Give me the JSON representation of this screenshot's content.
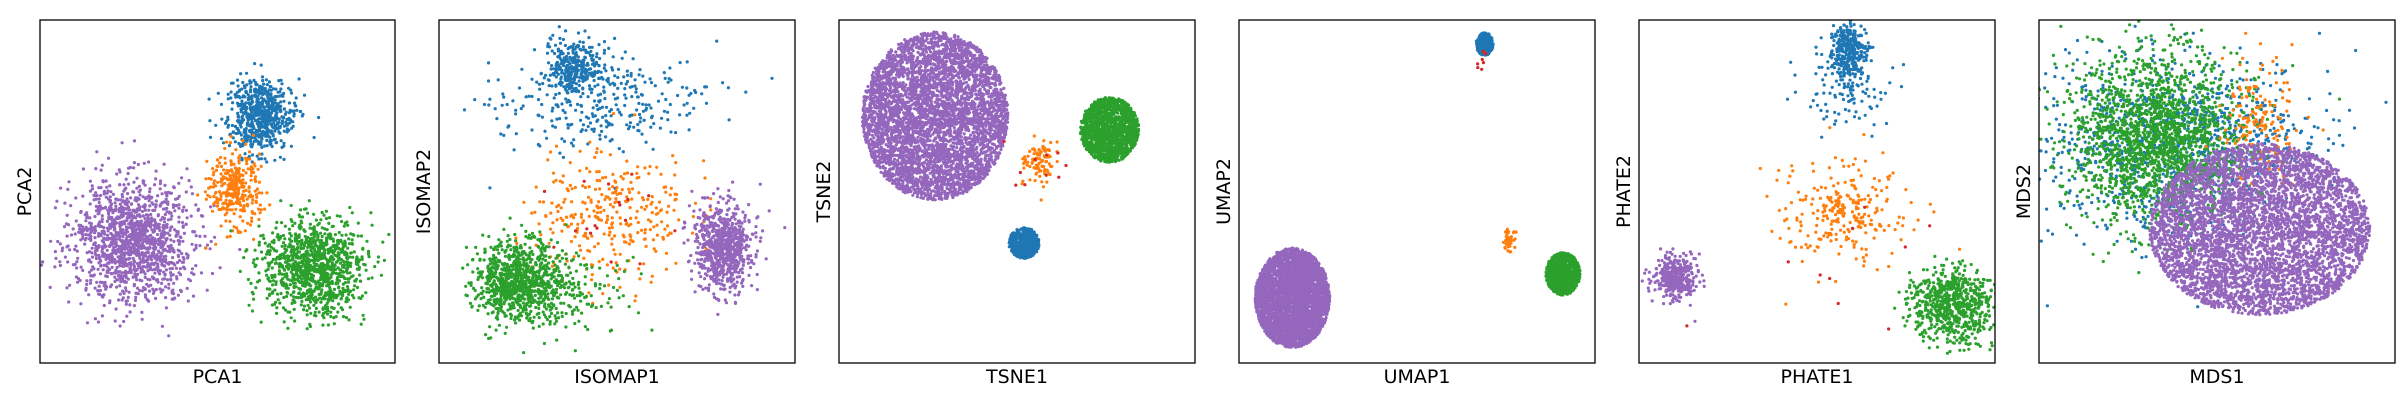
{
  "chart_data": [
    {
      "type": "scatter",
      "xlabel": "PCA1",
      "ylabel": "PCA2",
      "xlim": [
        0,
        100
      ],
      "ylim": [
        0,
        100
      ],
      "grid": false,
      "clusters": [
        {
          "color": "#9467bd",
          "center": [
            26,
            64
          ],
          "spread": [
            8.5,
            8.5
          ],
          "n": 1400,
          "shape": "gauss"
        },
        {
          "color": "#1f77b4",
          "center": [
            62,
            28
          ],
          "spread": [
            4.6,
            5.2
          ],
          "n": 650,
          "shape": "gauss"
        },
        {
          "color": "#ff7f0e",
          "center": [
            55,
            49
          ],
          "spread": [
            3.5,
            5.5
          ],
          "n": 320,
          "shape": "gauss"
        },
        {
          "color": "#2ca02c",
          "center": [
            77,
            72
          ],
          "spread": [
            7,
            7
          ],
          "n": 1100,
          "shape": "gauss"
        }
      ]
    },
    {
      "type": "scatter",
      "xlabel": "ISOMAP1",
      "ylabel": "ISOMAP2",
      "xlim": [
        0,
        100
      ],
      "ylim": [
        0,
        100
      ],
      "grid": false,
      "clusters": [
        {
          "color": "#1f77b4",
          "center": [
            38,
            14
          ],
          "spread": [
            4,
            4
          ],
          "n": 300,
          "shape": "gauss"
        },
        {
          "color": "#1f77b4",
          "center": [
            44,
            24
          ],
          "spread": [
            15,
            7
          ],
          "n": 300,
          "shape": "gauss"
        },
        {
          "color": "#ff7f0e",
          "center": [
            48,
            58
          ],
          "spread": [
            11,
            10
          ],
          "n": 320,
          "shape": "gauss"
        },
        {
          "color": "#9467bd",
          "center": [
            80,
            66
          ],
          "spread": [
            4,
            6
          ],
          "n": 800,
          "shape": "gauss"
        },
        {
          "color": "#2ca02c",
          "center": [
            22,
            76
          ],
          "spread": [
            6,
            5.5
          ],
          "n": 900,
          "shape": "gauss"
        },
        {
          "color": "#2ca02c",
          "center": [
            35,
            80
          ],
          "spread": [
            10,
            6
          ],
          "n": 180,
          "shape": "gauss"
        },
        {
          "color": "#d62728",
          "center": [
            48,
            55
          ],
          "spread": [
            12,
            12
          ],
          "n": 18,
          "shape": "gauss"
        }
      ]
    },
    {
      "type": "scatter",
      "xlabel": "TSNE1",
      "ylabel": "TSNE2",
      "xlim": [
        0,
        100
      ],
      "ylim": [
        0,
        100
      ],
      "grid": false,
      "clusters": [
        {
          "color": "#9467bd",
          "center": [
            27,
            28
          ],
          "spread": [
            20.5,
            24.5
          ],
          "n": 4500,
          "shape": "disk"
        },
        {
          "color": "#2ca02c",
          "center": [
            76,
            32
          ],
          "spread": [
            8.2,
            9.5
          ],
          "n": 1400,
          "shape": "disk"
        },
        {
          "color": "#ff7f0e",
          "center": [
            56,
            41
          ],
          "spread": [
            2.2,
            3.2
          ],
          "n": 90,
          "shape": "gauss"
        },
        {
          "color": "#1f77b4",
          "center": [
            52,
            65
          ],
          "spread": [
            4.3,
            4.5
          ],
          "n": 500,
          "shape": "disk"
        },
        {
          "color": "#d62728",
          "center": [
            55,
            44
          ],
          "spread": [
            6,
            8
          ],
          "n": 10,
          "shape": "gauss"
        }
      ]
    },
    {
      "type": "scatter",
      "xlabel": "UMAP1",
      "ylabel": "UMAP2",
      "xlim": [
        0,
        100
      ],
      "ylim": [
        0,
        100
      ],
      "grid": false,
      "clusters": [
        {
          "color": "#9467bd",
          "center": [
            15,
            81
          ],
          "spread": [
            10.5,
            14.5
          ],
          "n": 3500,
          "shape": "disk"
        },
        {
          "color": "#1f77b4",
          "center": [
            69,
            7
          ],
          "spread": [
            2.4,
            3.3
          ],
          "n": 300,
          "shape": "disk"
        },
        {
          "color": "#2ca02c",
          "center": [
            91,
            74
          ],
          "spread": [
            4.8,
            6.2
          ],
          "n": 900,
          "shape": "disk"
        },
        {
          "color": "#ff7f0e",
          "center": [
            76,
            64
          ],
          "spread": [
            1,
            1.5
          ],
          "n": 45,
          "shape": "gauss"
        },
        {
          "color": "#d62728",
          "center": [
            68,
            11
          ],
          "spread": [
            0.6,
            2
          ],
          "n": 8,
          "shape": "gauss"
        }
      ]
    },
    {
      "type": "scatter",
      "xlabel": "PHATE1",
      "ylabel": "PHATE2",
      "xlim": [
        0,
        100
      ],
      "ylim": [
        0,
        100
      ],
      "grid": false,
      "clusters": [
        {
          "color": "#1f77b4",
          "center": [
            59,
            9
          ],
          "spread": [
            2.5,
            4
          ],
          "n": 300,
          "shape": "gauss"
        },
        {
          "color": "#1f77b4",
          "center": [
            58,
            20
          ],
          "spread": [
            6,
            6
          ],
          "n": 120,
          "shape": "gauss"
        },
        {
          "color": "#ff7f0e",
          "center": [
            57,
            56
          ],
          "spread": [
            10,
            9
          ],
          "n": 200,
          "shape": "gauss"
        },
        {
          "color": "#ff7f0e",
          "center": [
            57,
            56
          ],
          "spread": [
            2.5,
            2.5
          ],
          "n": 60,
          "shape": "gauss"
        },
        {
          "color": "#9467bd",
          "center": [
            10,
            75
          ],
          "spread": [
            3,
            3
          ],
          "n": 400,
          "shape": "gauss"
        },
        {
          "color": "#2ca02c",
          "center": [
            88,
            83
          ],
          "spread": [
            5.5,
            5.5
          ],
          "n": 700,
          "shape": "gauss"
        },
        {
          "color": "#d62728",
          "center": [
            60,
            70
          ],
          "spread": [
            18,
            12
          ],
          "n": 10,
          "shape": "gauss"
        }
      ]
    },
    {
      "type": "scatter",
      "xlabel": "MDS1",
      "ylabel": "MDS2",
      "xlim": [
        0,
        100
      ],
      "ylim": [
        0,
        100
      ],
      "grid": false,
      "clusters": [
        {
          "color": "#1f77b4",
          "center": [
            38,
            37
          ],
          "spread": [
            18,
            13
          ],
          "n": 1100,
          "shape": "gauss"
        },
        {
          "color": "#2ca02c",
          "center": [
            33,
            34
          ],
          "spread": [
            12,
            12
          ],
          "n": 1900,
          "shape": "gauss"
        },
        {
          "color": "#ff7f0e",
          "center": [
            62,
            29
          ],
          "spread": [
            5,
            9
          ],
          "n": 160,
          "shape": "gauss"
        },
        {
          "color": "#9467bd",
          "center": [
            62,
            61
          ],
          "spread": [
            31,
            25
          ],
          "n": 4500,
          "shape": "disk"
        }
      ]
    }
  ]
}
